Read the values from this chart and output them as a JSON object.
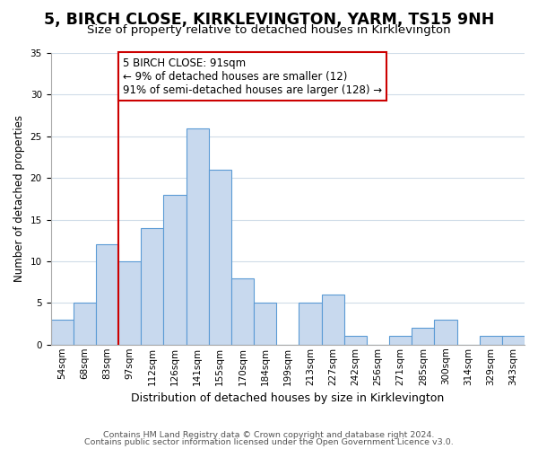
{
  "title": "5, BIRCH CLOSE, KIRKLEVINGTON, YARM, TS15 9NH",
  "subtitle": "Size of property relative to detached houses in Kirklevington",
  "xlabel": "Distribution of detached houses by size in Kirklevington",
  "ylabel": "Number of detached properties",
  "footnote1": "Contains HM Land Registry data © Crown copyright and database right 2024.",
  "footnote2": "Contains public sector information licensed under the Open Government Licence v3.0.",
  "bin_labels": [
    "54sqm",
    "68sqm",
    "83sqm",
    "97sqm",
    "112sqm",
    "126sqm",
    "141sqm",
    "155sqm",
    "170sqm",
    "184sqm",
    "199sqm",
    "213sqm",
    "227sqm",
    "242sqm",
    "256sqm",
    "271sqm",
    "285sqm",
    "300sqm",
    "314sqm",
    "329sqm",
    "343sqm"
  ],
  "bar_values": [
    3,
    5,
    12,
    10,
    14,
    18,
    26,
    21,
    8,
    5,
    0,
    5,
    6,
    1,
    0,
    1,
    2,
    3,
    0,
    1,
    1
  ],
  "bar_color": "#c8d9ee",
  "bar_edge_color": "#5b9bd5",
  "vline_x": 2.5,
  "vline_color": "#cc0000",
  "annotation_text": "5 BIRCH CLOSE: 91sqm\n← 9% of detached houses are smaller (12)\n91% of semi-detached houses are larger (128) →",
  "annotation_box_color": "#ffffff",
  "annotation_box_edge_color": "#cc0000",
  "ylim": [
    0,
    35
  ],
  "yticks": [
    0,
    5,
    10,
    15,
    20,
    25,
    30,
    35
  ],
  "background_color": "#ffffff",
  "grid_color": "#d0dce8",
  "title_fontsize": 12.5,
  "subtitle_fontsize": 9.5,
  "xlabel_fontsize": 9,
  "ylabel_fontsize": 8.5,
  "tick_fontsize": 7.5,
  "annotation_fontsize": 8.5,
  "footnote_fontsize": 6.8
}
